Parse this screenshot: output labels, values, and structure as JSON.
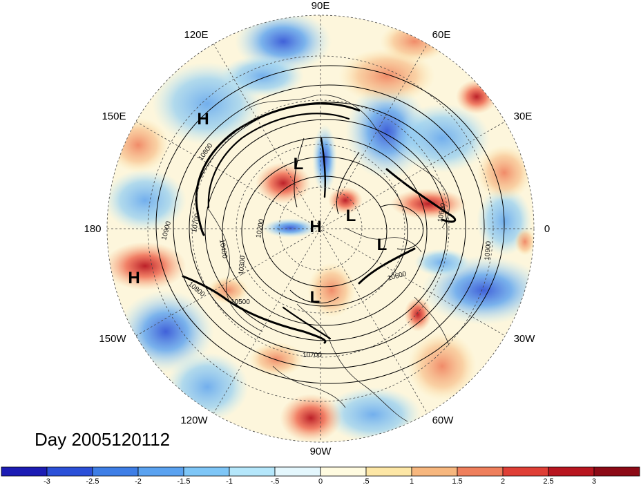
{
  "title": "Day 2005120112",
  "longitude_labels": [
    "90E",
    "60E",
    "30E",
    "0",
    "30W",
    "60W",
    "90W",
    "120W",
    "150W",
    "180",
    "150E",
    "120E"
  ],
  "pressure_centers": [
    {
      "label": "H"
    },
    {
      "label": "H"
    },
    {
      "label": "H"
    },
    {
      "label": "L"
    },
    {
      "label": "L"
    },
    {
      "label": "L"
    },
    {
      "label": "L"
    }
  ],
  "contour_labels": [
    "10900",
    "10800",
    "10700",
    "10600",
    "10500",
    "10400",
    "10300",
    "10200",
    "10900",
    "10800",
    "10600",
    "10700"
  ],
  "colorbar": {
    "ticks": [
      "-3",
      "-2.5",
      "-2",
      "-1.5",
      "-1",
      "-.5",
      "0",
      ".5",
      "1",
      "1.5",
      "2",
      "2.5",
      "3"
    ],
    "colors": [
      "#1c1cb4",
      "#2b50d8",
      "#3e7ee6",
      "#5aa2f0",
      "#7ec6f7",
      "#b5e7fb",
      "#e4f7fd",
      "#fffbe0",
      "#fde7a6",
      "#f7b77e",
      "#ef7f5c",
      "#df3f36",
      "#b8151f",
      "#8c0a16"
    ]
  }
}
